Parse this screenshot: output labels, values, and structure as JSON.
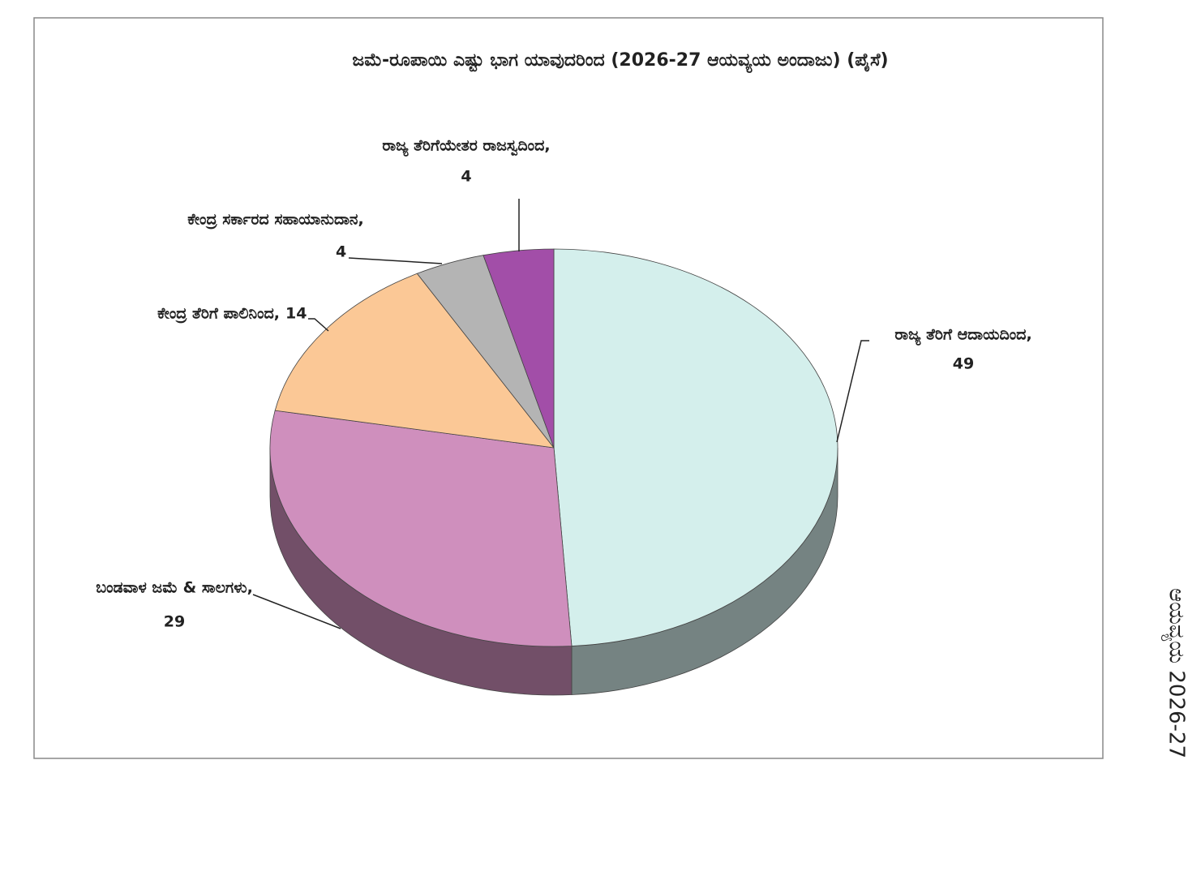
{
  "chart_data": {
    "type": "pie3d",
    "title": "ಜಮೆ-ರೂಪಾಯಿ ಎಷ್ಟು ಭಾಗ ಯಾವುದರಿಂದ (2026-27 ಆಯವ್ಯಯ ಅಂದಾಜು)    (ಪೈಸೆ)",
    "categories": [
      "ರಾಜ್ಯ ತೆರಿಗೆ ಆದಾಯದಿಂದ,",
      "ಬಂಡವಾಳ ಜಮೆ & ಸಾಲಗಳು,",
      "ಕೇಂದ್ರ ತೆರಿಗೆ ಪಾಲಿನಿಂದ,",
      "ಕೇಂದ್ರ ಸರ್ಕಾರದ ಸಹಾಯಾನುದಾನ,",
      "ರಾಜ್ಯ ತೆರಿಗೆಯೇತರ ರಾಜಸ್ವದಿಂದ,"
    ],
    "values": [
      49,
      29,
      14,
      4,
      4
    ],
    "colors": [
      "#d4efec",
      "#cf8fbd",
      "#fbc896",
      "#b4b4b4",
      "#a24ea8"
    ]
  },
  "side_text": "ಆಯವ್ಯಯ 2026-27"
}
